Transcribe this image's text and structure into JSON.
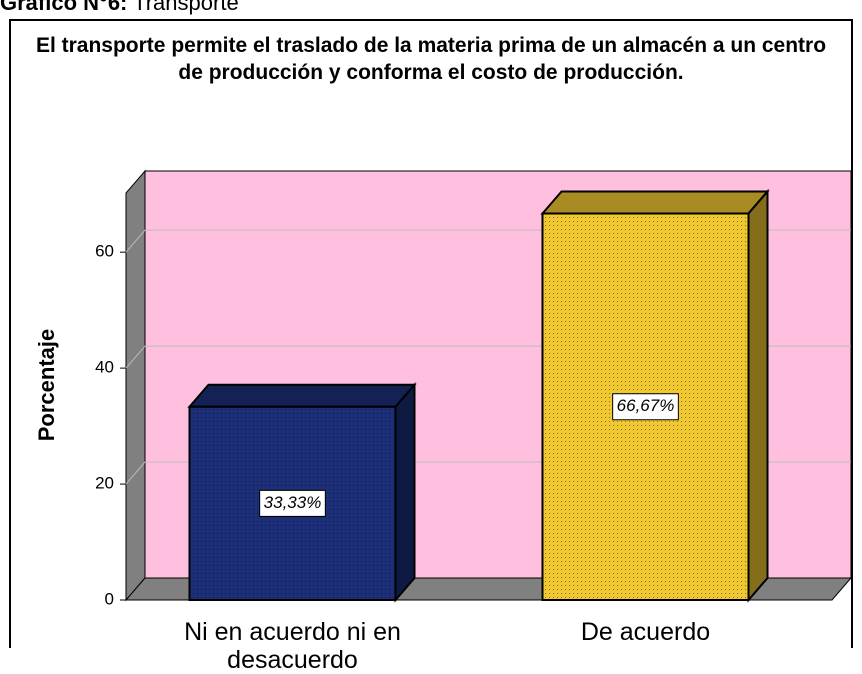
{
  "caption": {
    "label": "Gráfico N°6:",
    "text": "Transporte"
  },
  "chart_data": {
    "type": "bar3d",
    "title": "El transporte permite el traslado de la materia prima de un almacén a un centro de producción y conforma el costo de producción.",
    "y_label": "Porcentaje",
    "categories": [
      "Ni en acuerdo ni en desacuerdo",
      "De acuerdo"
    ],
    "values": [
      33.33,
      66.67
    ],
    "value_labels": [
      "33,33%",
      "66,67%"
    ],
    "colors": [
      "#1c2f78",
      "#f0c832"
    ],
    "ylim": [
      0,
      74
    ],
    "yticks": [
      0,
      20,
      40,
      60
    ],
    "grid": true
  }
}
